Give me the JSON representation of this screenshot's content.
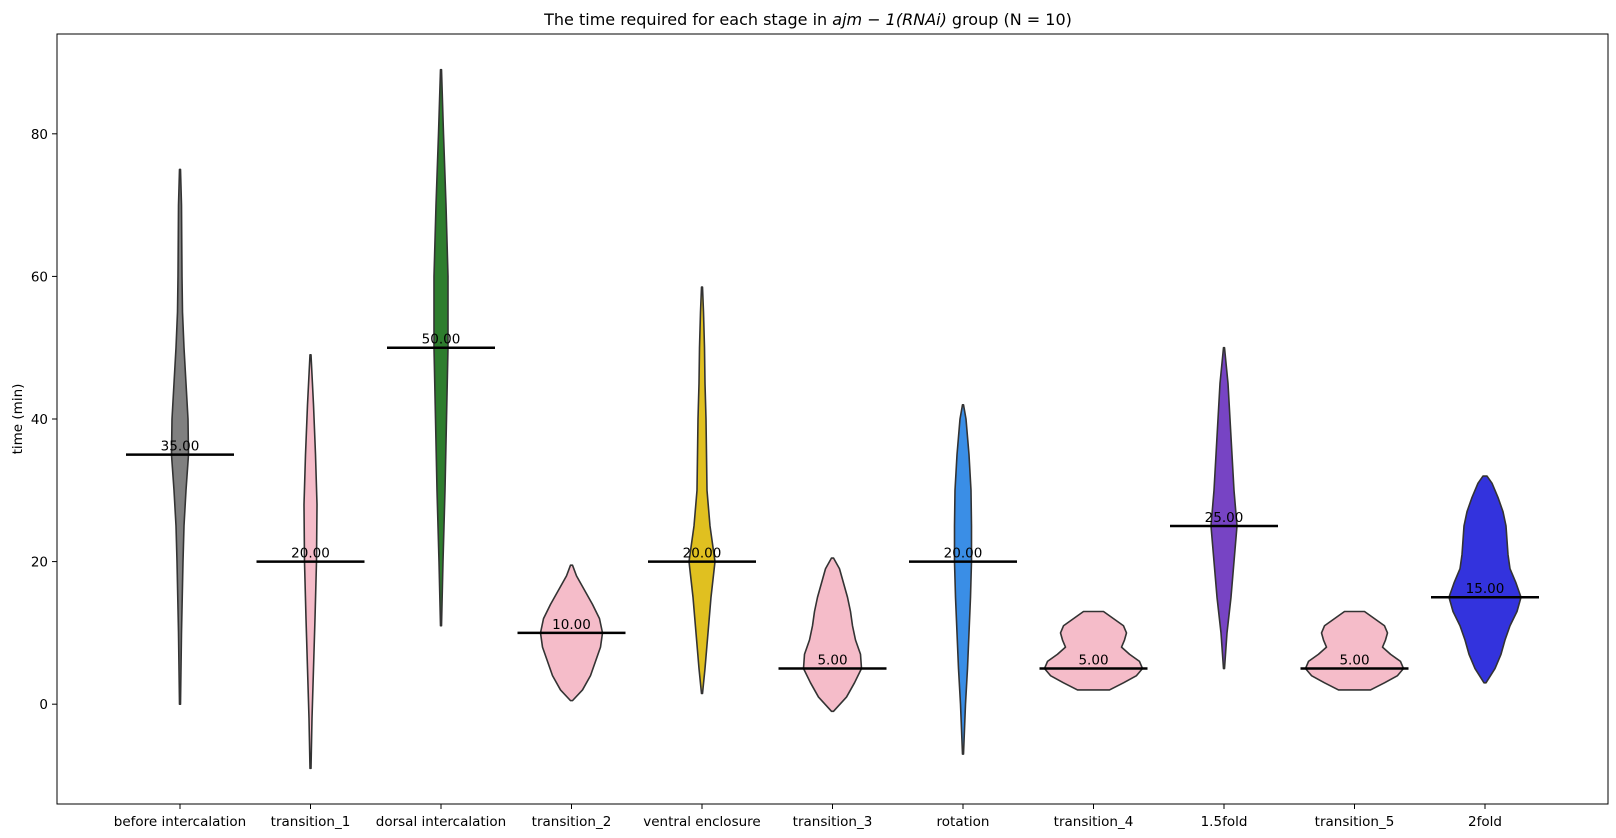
{
  "chart_data": {
    "type": "violin",
    "title": "The time required for each stage in ajm − 1(RNAi) group (N = 10)",
    "title_parts": {
      "prefix": "The time required for each stage in ",
      "math": "ajm − 1(RNAi)",
      "suffix": " group (N = 10)"
    },
    "xlabel": "",
    "ylabel": "time (min)",
    "ylim": [
      -14,
      94
    ],
    "yticks": [
      0,
      20,
      40,
      60,
      80
    ],
    "grid": false,
    "categories": [
      "before intercalation",
      "transition_1",
      "dorsal intercalation",
      "transition_2",
      "ventral enclosure",
      "transition_3",
      "rotation",
      "transition_4",
      "1.5fold",
      "transition_5",
      "2fold"
    ],
    "medians": [
      35,
      20,
      50,
      10,
      20,
      5,
      20,
      5,
      25,
      5,
      15
    ],
    "median_labels": [
      "35.00",
      "20.00",
      "50.00",
      "10.00",
      "20.00",
      "5.00",
      "20.00",
      "5.00",
      "25.00",
      "5.00",
      "15.00"
    ],
    "colors": [
      "#808080",
      "#f5bcc9",
      "#2e7d2e",
      "#f5bcc9",
      "#e0c020",
      "#f5bcc9",
      "#3a8ee6",
      "#f5bcc9",
      "#7744c4",
      "#f5bcc9",
      "#3333dd"
    ],
    "violins": [
      {
        "profile": [
          [
            0,
            0.5
          ],
          [
            10,
            1.5
          ],
          [
            20,
            3
          ],
          [
            25,
            4
          ],
          [
            30,
            6
          ],
          [
            35,
            8.5
          ],
          [
            40,
            8
          ],
          [
            45,
            6
          ],
          [
            50,
            4
          ],
          [
            55,
            2.5
          ],
          [
            60,
            2
          ],
          [
            70,
            1.5
          ],
          [
            75,
            0.5
          ]
        ]
      },
      {
        "profile": [
          [
            -9,
            0.5
          ],
          [
            -2,
            1.5
          ],
          [
            5,
            3
          ],
          [
            12,
            4.5
          ],
          [
            20,
            6
          ],
          [
            28,
            6.5
          ],
          [
            35,
            5
          ],
          [
            42,
            3
          ],
          [
            49,
            0.5
          ]
        ]
      },
      {
        "profile": [
          [
            11,
            0.5
          ],
          [
            20,
            2
          ],
          [
            30,
            4
          ],
          [
            40,
            5.5
          ],
          [
            50,
            7
          ],
          [
            60,
            7
          ],
          [
            70,
            5
          ],
          [
            80,
            2.5
          ],
          [
            89,
            0.5
          ]
        ]
      },
      {
        "profile": [
          [
            0.5,
            1
          ],
          [
            2,
            11
          ],
          [
            4,
            19
          ],
          [
            6,
            24
          ],
          [
            8,
            29
          ],
          [
            10,
            31
          ],
          [
            12,
            28
          ],
          [
            14,
            21
          ],
          [
            16,
            13
          ],
          [
            18,
            5
          ],
          [
            19.5,
            1
          ]
        ]
      },
      {
        "profile": [
          [
            1.5,
            0.5
          ],
          [
            5,
            3
          ],
          [
            10,
            6
          ],
          [
            15,
            9
          ],
          [
            20,
            13
          ],
          [
            25,
            8
          ],
          [
            30,
            5
          ],
          [
            35,
            4.5
          ],
          [
            40,
            4
          ],
          [
            45,
            3
          ],
          [
            50,
            2.5
          ],
          [
            55,
            1.5
          ],
          [
            58.5,
            0.5
          ]
        ]
      },
      {
        "profile": [
          [
            -1,
            1
          ],
          [
            1,
            14
          ],
          [
            3,
            22
          ],
          [
            5,
            29
          ],
          [
            7,
            28
          ],
          [
            9,
            23
          ],
          [
            11,
            20
          ],
          [
            13,
            18
          ],
          [
            15,
            15
          ],
          [
            17,
            11
          ],
          [
            19,
            7
          ],
          [
            20.5,
            1
          ]
        ]
      },
      {
        "profile": [
          [
            -7,
            0.5
          ],
          [
            0,
            2.5
          ],
          [
            5,
            4.5
          ],
          [
            10,
            6
          ],
          [
            15,
            7.5
          ],
          [
            20,
            8.5
          ],
          [
            25,
            8.5
          ],
          [
            30,
            8
          ],
          [
            35,
            6
          ],
          [
            40,
            3
          ],
          [
            42,
            0.5
          ]
        ]
      },
      {
        "profile": [
          [
            2,
            16
          ],
          [
            3,
            30
          ],
          [
            4,
            43
          ],
          [
            5,
            49
          ],
          [
            6,
            46
          ],
          [
            7,
            36
          ],
          [
            8,
            28
          ],
          [
            9,
            31
          ],
          [
            10,
            33
          ],
          [
            11,
            30
          ],
          [
            12,
            20
          ],
          [
            13,
            10
          ]
        ]
      },
      {
        "profile": [
          [
            5,
            0.5
          ],
          [
            10,
            3
          ],
          [
            15,
            7
          ],
          [
            20,
            10
          ],
          [
            25,
            13
          ],
          [
            30,
            10
          ],
          [
            35,
            8
          ],
          [
            40,
            6
          ],
          [
            45,
            4
          ],
          [
            50,
            0.5
          ]
        ]
      },
      {
        "profile": [
          [
            2,
            16
          ],
          [
            3,
            30
          ],
          [
            4,
            43
          ],
          [
            5,
            49
          ],
          [
            6,
            46
          ],
          [
            7,
            36
          ],
          [
            8,
            28
          ],
          [
            9,
            31
          ],
          [
            10,
            33
          ],
          [
            11,
            30
          ],
          [
            12,
            20
          ],
          [
            13,
            10
          ]
        ]
      },
      {
        "profile": [
          [
            3,
            1
          ],
          [
            5,
            10
          ],
          [
            7,
            16
          ],
          [
            9,
            20
          ],
          [
            11,
            25
          ],
          [
            13,
            32
          ],
          [
            15,
            36
          ],
          [
            17,
            31
          ],
          [
            19,
            25
          ],
          [
            21,
            23
          ],
          [
            23,
            22
          ],
          [
            25,
            21
          ],
          [
            27,
            18
          ],
          [
            29,
            13
          ],
          [
            31,
            7
          ],
          [
            32,
            2
          ]
        ]
      }
    ]
  }
}
